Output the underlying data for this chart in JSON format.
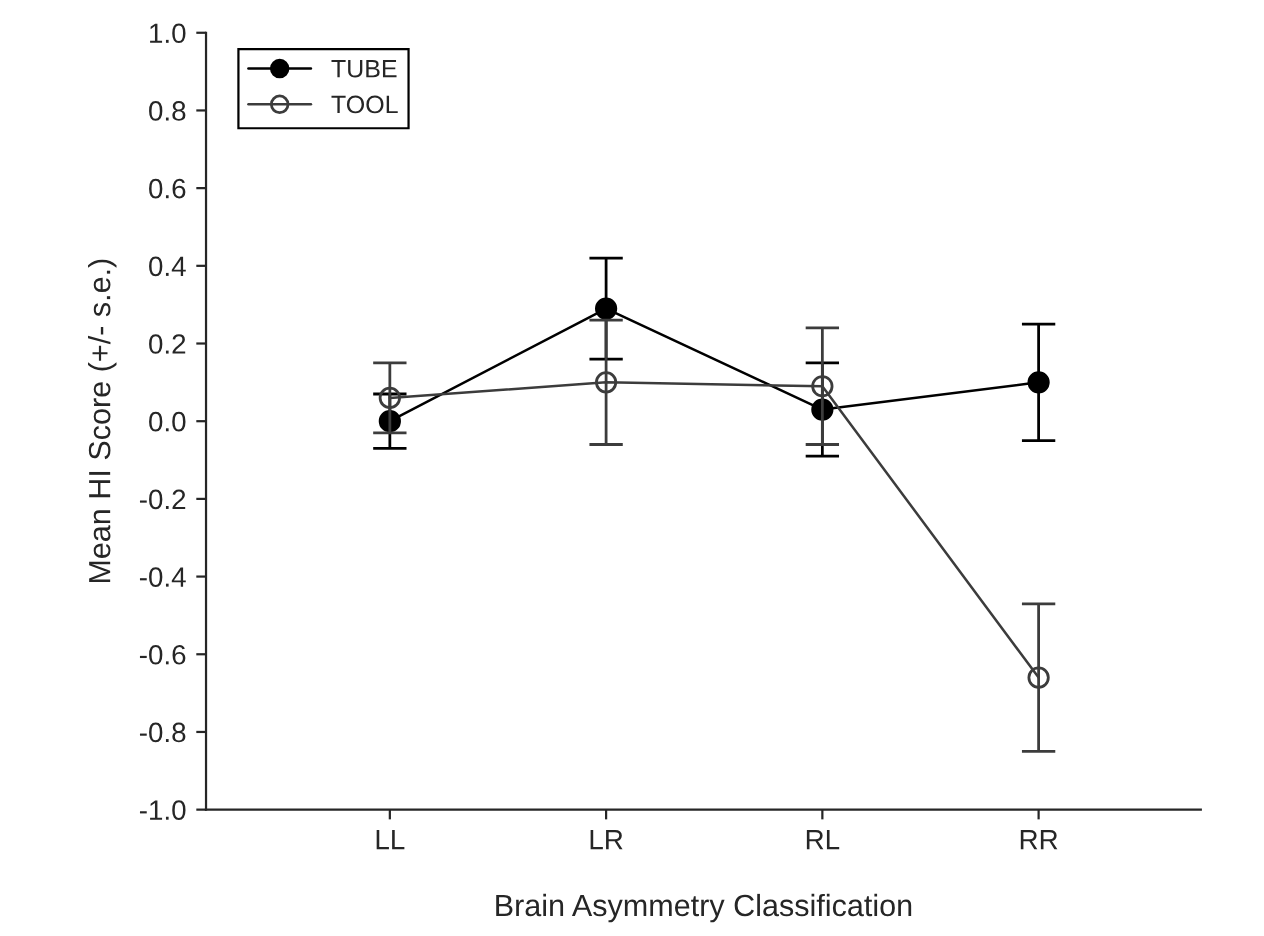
{
  "chart_data": {
    "type": "line",
    "xlabel": "Brain Asymmetry Classification",
    "ylabel": "Mean HI Score (+/- s.e.)",
    "categories": [
      "LL",
      "LR",
      "RL",
      "RR"
    ],
    "series": [
      {
        "name": "TUBE",
        "color": "#000000",
        "values": [
          0.0,
          0.29,
          0.03,
          0.1
        ],
        "errors": [
          0.07,
          0.13,
          0.12,
          0.15
        ]
      },
      {
        "name": "TOOL",
        "color": "#3c3c3c",
        "values": [
          0.06,
          0.1,
          0.09,
          -0.66
        ],
        "errors": [
          0.09,
          0.16,
          0.15,
          0.19
        ]
      }
    ],
    "ylim": [
      -1.0,
      1.0
    ],
    "yticks": [
      {
        "value": -1.0,
        "label": "-1.0"
      },
      {
        "value": -0.8,
        "label": "-0.8"
      },
      {
        "value": -0.6,
        "label": "-0.6"
      },
      {
        "value": -0.4,
        "label": "-0.4"
      },
      {
        "value": -0.2,
        "label": "-0.2"
      },
      {
        "value": 0.0,
        "label": "0.0"
      },
      {
        "value": 0.2,
        "label": "0.2"
      },
      {
        "value": 0.4,
        "label": "0.4"
      },
      {
        "value": 0.6,
        "label": "0.6"
      },
      {
        "value": 0.8,
        "label": "0.8"
      },
      {
        "value": 1.0,
        "label": "1.0"
      }
    ],
    "marker": "circle",
    "line_style": "solid",
    "grid": false,
    "legend": "top left"
  }
}
